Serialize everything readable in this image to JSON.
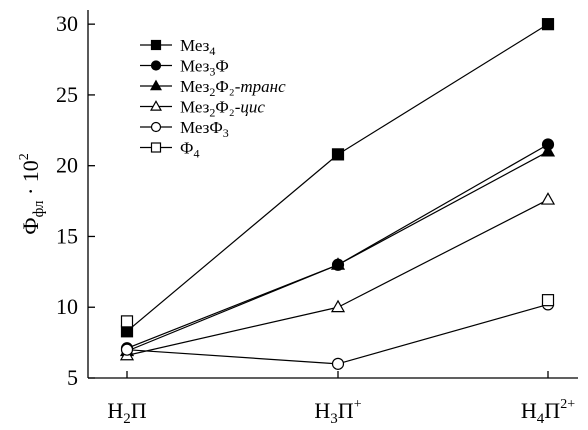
{
  "chart_data": {
    "type": "line",
    "categories": [
      {
        "base": "H",
        "sub": "2",
        "mid": "П",
        "sup": ""
      },
      {
        "base": "H",
        "sub": "3",
        "mid": "П",
        "sup": "+"
      },
      {
        "base": "H",
        "sub": "4",
        "mid": "П",
        "sup": "2+"
      }
    ],
    "ylabel": {
      "base": "Ф",
      "sub": "фл",
      "rest": " · 10",
      "sup": "2"
    },
    "ylim": [
      5,
      31
    ],
    "yticks": [
      "5",
      "10",
      "15",
      "20",
      "25",
      "30"
    ],
    "grid": false,
    "legend_position": "top-left",
    "series": [
      {
        "name": "Мез₄",
        "marker": "square-filled",
        "values": [
          8.3,
          20.8,
          30.0
        ],
        "legend": {
          "text": "Мез",
          "sub": "4",
          "tail": "",
          "italic": ""
        }
      },
      {
        "name": "Мез₃Ф",
        "marker": "circle-filled",
        "values": [
          7.1,
          13.0,
          21.5
        ],
        "legend": {
          "text": "Мез",
          "sub": "3",
          "tail": "Ф",
          "italic": ""
        }
      },
      {
        "name": "Мез₂Ф₂-транс",
        "marker": "triangle-filled",
        "values": [
          6.9,
          13.0,
          21.0
        ],
        "legend": {
          "text": "Мез",
          "sub": "2",
          "tail": "Ф₂-",
          "italic": "транс"
        }
      },
      {
        "name": "Мез₂Ф₂-цис",
        "marker": "triangle-open",
        "values": [
          6.6,
          10.0,
          17.6
        ],
        "legend": {
          "text": "Мез",
          "sub": "2",
          "tail": "Ф₂-",
          "italic": "цис"
        }
      },
      {
        "name": "МезФ₃",
        "marker": "circle-open",
        "values": [
          7.0,
          6.0,
          10.2
        ],
        "legend": {
          "text": "МезФ",
          "sub": "3",
          "tail": "",
          "italic": ""
        }
      },
      {
        "name": "Ф₄",
        "marker": "square-open",
        "values": [
          9.0,
          null,
          10.5
        ],
        "legend": {
          "text": "Ф",
          "sub": "4",
          "tail": "",
          "italic": ""
        }
      }
    ]
  }
}
